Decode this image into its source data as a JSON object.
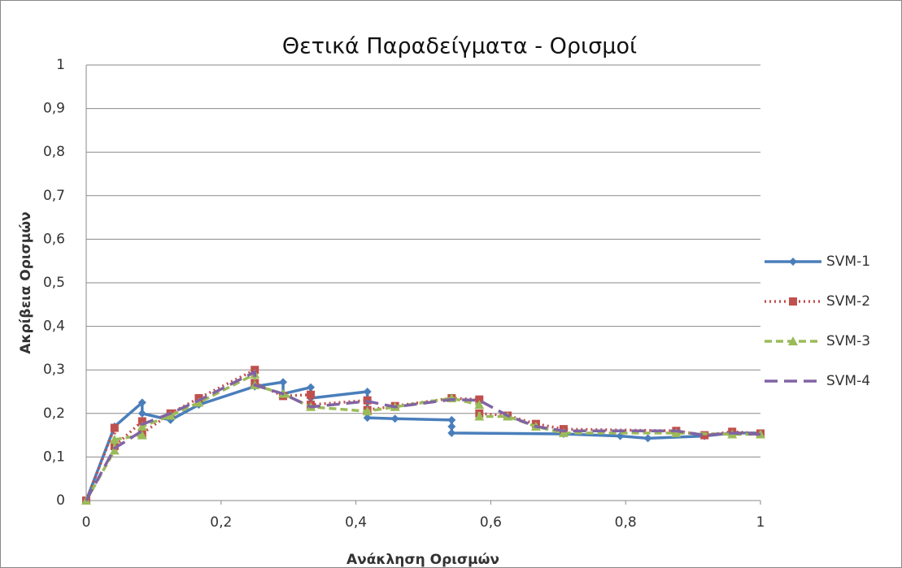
{
  "chart_data": {
    "type": "line",
    "title": "Θετικά Παραδείγματα - Ορισμοί",
    "x_label": "Ανάκληση Ορισμών",
    "y_label": "Ακρίβεια Ορισμών",
    "xlim": [
      0,
      1
    ],
    "ylim": [
      0,
      1
    ],
    "xticks": [
      0,
      {
        "value": 0.2,
        "label": "0,2"
      },
      {
        "value": 0.4,
        "label": "0,4"
      },
      {
        "value": 0.6,
        "label": "0,6"
      },
      {
        "value": 0.8,
        "label": "0,8"
      },
      1
    ],
    "yticks": [
      0,
      {
        "value": 0.1,
        "label": "0,1"
      },
      {
        "value": 0.2,
        "label": "0,2"
      },
      {
        "value": 0.3,
        "label": "0,3"
      },
      {
        "value": 0.4,
        "label": "0,4"
      },
      {
        "value": 0.5,
        "label": "0,5"
      },
      {
        "value": 0.6,
        "label": "0,6"
      },
      {
        "value": 0.7,
        "label": "0,7"
      },
      {
        "value": 0.8,
        "label": "0,8"
      },
      {
        "value": 0.9,
        "label": "0,9"
      },
      1
    ],
    "grid": true,
    "legend": "right",
    "series": [
      {
        "name": "SVM-1",
        "color": "#4a7ebb",
        "marker": "diamond",
        "dash": "solid",
        "x": [
          0,
          0.042,
          0.083,
          0.083,
          0.125,
          0.167,
          0.25,
          0.292,
          0.292,
          0.333,
          0.333,
          0.417,
          0.417,
          0.458,
          0.542,
          0.542,
          0.542,
          0.708,
          0.792,
          0.833,
          0.917,
          0.958,
          1
        ],
        "values": [
          0,
          0.17,
          0.225,
          0.2,
          0.185,
          0.22,
          0.262,
          0.272,
          0.245,
          0.26,
          0.235,
          0.25,
          0.19,
          0.188,
          0.185,
          0.17,
          0.155,
          0.153,
          0.148,
          0.143,
          0.148,
          0.155,
          0.155
        ]
      },
      {
        "name": "SVM-2",
        "color": "#c0504d",
        "marker": "square",
        "dash": "dot",
        "x": [
          0,
          0.042,
          0.042,
          0.083,
          0.083,
          0.125,
          0.167,
          0.25,
          0.25,
          0.292,
          0.333,
          0.333,
          0.417,
          0.417,
          0.458,
          0.542,
          0.583,
          0.583,
          0.625,
          0.667,
          0.708,
          0.875,
          0.917,
          0.958,
          1
        ],
        "values": [
          0,
          0.167,
          0.125,
          0.182,
          0.154,
          0.2,
          0.235,
          0.3,
          0.27,
          0.24,
          0.243,
          0.22,
          0.23,
          0.208,
          0.217,
          0.235,
          0.232,
          0.2,
          0.195,
          0.176,
          0.164,
          0.16,
          0.15,
          0.158,
          0.154
        ]
      },
      {
        "name": "SVM-3",
        "color": "#9bbb59",
        "marker": "triangle",
        "dash": "dash",
        "x": [
          0,
          0.042,
          0.042,
          0.083,
          0.083,
          0.125,
          0.167,
          0.25,
          0.25,
          0.292,
          0.333,
          0.417,
          0.458,
          0.542,
          0.583,
          0.583,
          0.625,
          0.667,
          0.708,
          0.875,
          0.958,
          1
        ],
        "values": [
          0,
          0.115,
          0.14,
          0.15,
          0.17,
          0.195,
          0.225,
          0.29,
          0.265,
          0.245,
          0.215,
          0.205,
          0.215,
          0.235,
          0.22,
          0.193,
          0.193,
          0.17,
          0.155,
          0.155,
          0.152,
          0.152
        ]
      },
      {
        "name": "SVM-4",
        "color": "#8064a2",
        "marker": "none",
        "dash": "longdash",
        "x": [
          0,
          0.042,
          0.083,
          0.083,
          0.125,
          0.167,
          0.25,
          0.25,
          0.292,
          0.333,
          0.417,
          0.458,
          0.542,
          0.583,
          0.625,
          0.667,
          0.708,
          0.875,
          0.917,
          0.958,
          1
        ],
        "values": [
          0,
          0.12,
          0.16,
          0.175,
          0.2,
          0.23,
          0.295,
          0.265,
          0.245,
          0.215,
          0.228,
          0.215,
          0.232,
          0.23,
          0.195,
          0.17,
          0.16,
          0.16,
          0.15,
          0.155,
          0.152
        ]
      }
    ]
  }
}
